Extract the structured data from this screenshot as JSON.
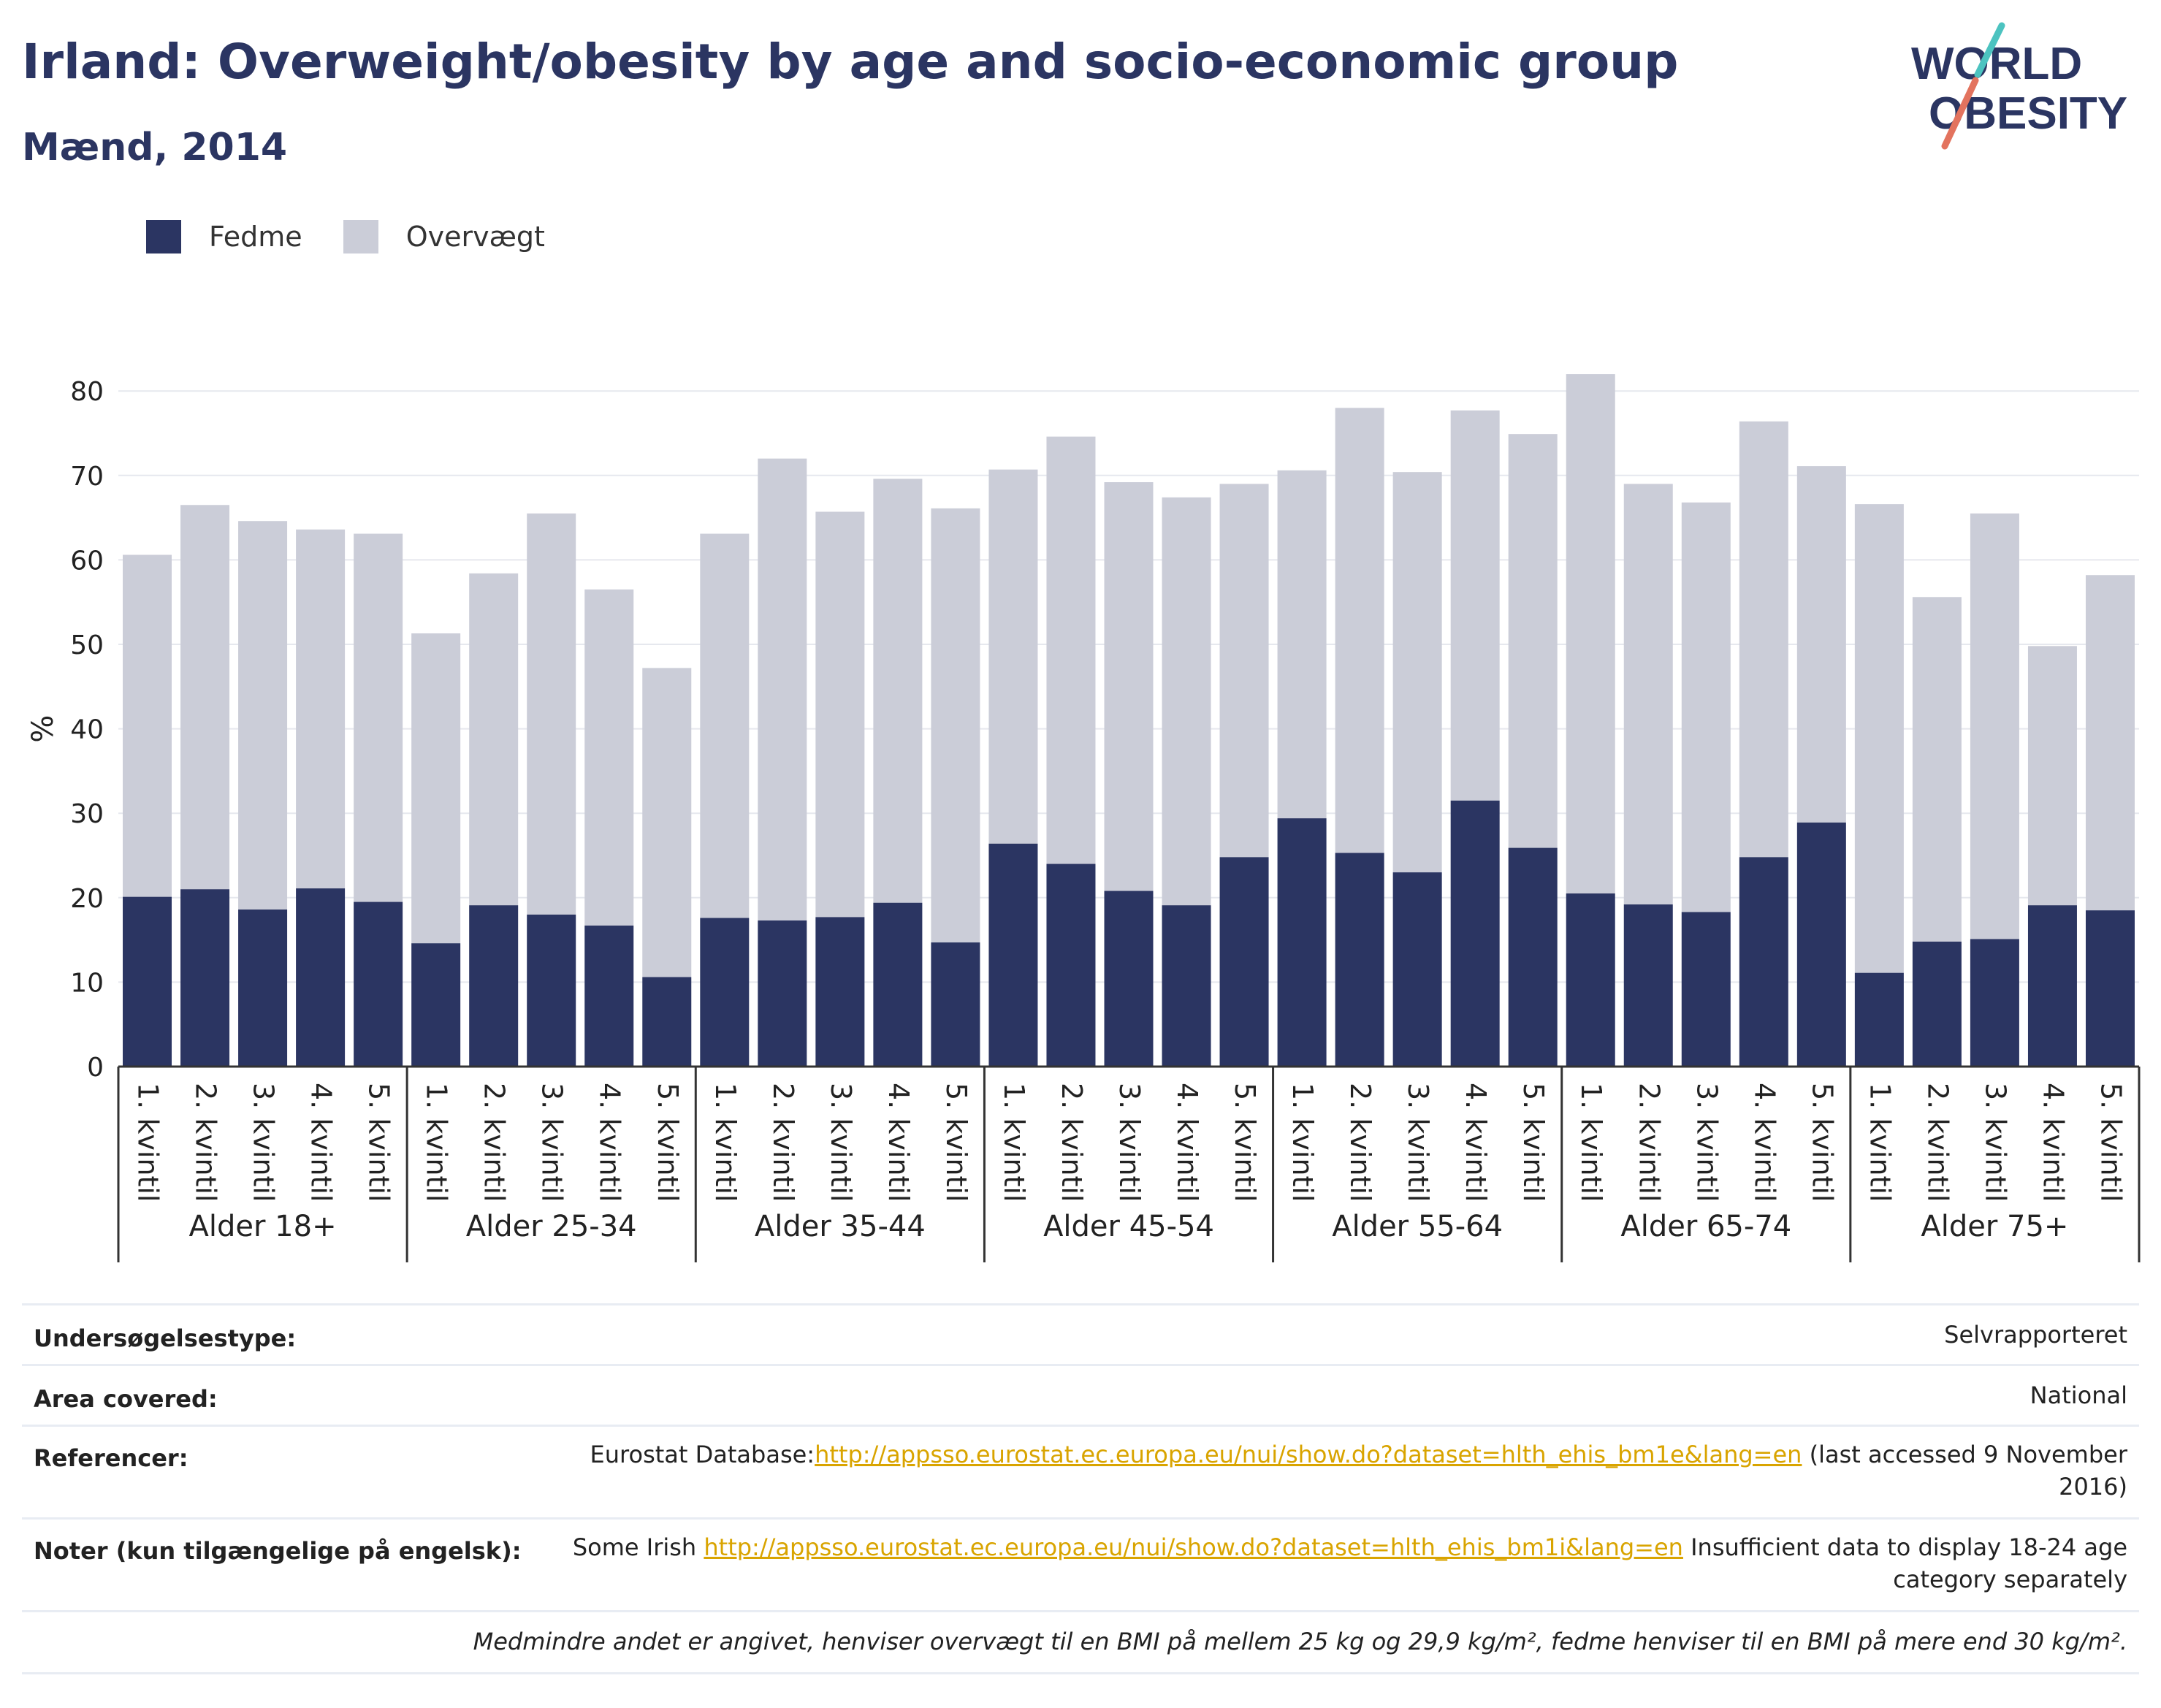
{
  "title": "Irland: Overweight/obesity by age and socio-economic group",
  "subtitle": "Mænd, 2014",
  "logo": {
    "line1": "WORLD",
    "line2": "OBESITY"
  },
  "colors": {
    "fedme": "#2b3562",
    "overvaegt": "#cbcdd8",
    "title": "#2b3562",
    "link": "#d9a400",
    "logo_teal": "#4cc3c0",
    "logo_coral": "#e3735e"
  },
  "chart_data": {
    "type": "bar",
    "stacked": true,
    "ylabel": "%",
    "ylim": [
      0,
      85
    ],
    "yticks": [
      0,
      10,
      20,
      30,
      40,
      50,
      60,
      70,
      80
    ],
    "grid": true,
    "legend": {
      "position": "top-left",
      "entries": [
        "Fedme",
        "Overvægt"
      ]
    },
    "groups": [
      {
        "label": "Alder 18+",
        "categories": [
          "1. kvintil",
          "2. kvintil",
          "3. kvintil",
          "4. kvintil",
          "5. kvintil"
        ]
      },
      {
        "label": "Alder 25-34",
        "categories": [
          "1. kvintil",
          "2. kvintil",
          "3. kvintil",
          "4. kvintil",
          "5. kvintil"
        ]
      },
      {
        "label": "Alder 35-44",
        "categories": [
          "1. kvintil",
          "2. kvintil",
          "3. kvintil",
          "4. kvintil",
          "5. kvintil"
        ]
      },
      {
        "label": "Alder 45-54",
        "categories": [
          "1. kvintil",
          "2. kvintil",
          "3. kvintil",
          "4. kvintil",
          "5. kvintil"
        ]
      },
      {
        "label": "Alder 55-64",
        "categories": [
          "1. kvintil",
          "2. kvintil",
          "3. kvintil",
          "4. kvintil",
          "5. kvintil"
        ]
      },
      {
        "label": "Alder 65-74",
        "categories": [
          "1. kvintil",
          "2. kvintil",
          "3. kvintil",
          "4. kvintil",
          "5. kvintil"
        ]
      },
      {
        "label": "Alder 75+",
        "categories": [
          "1. kvintil",
          "2. kvintil",
          "3. kvintil",
          "4. kvintil",
          "5. kvintil"
        ]
      }
    ],
    "series": [
      {
        "name": "Fedme",
        "values": [
          20.1,
          21.0,
          18.6,
          21.1,
          19.5,
          14.6,
          19.1,
          18.0,
          16.7,
          10.6,
          17.6,
          17.3,
          17.7,
          19.4,
          14.7,
          26.4,
          24.0,
          20.8,
          19.1,
          24.8,
          29.4,
          25.3,
          23.0,
          31.5,
          25.9,
          20.5,
          19.2,
          18.3,
          24.8,
          28.9,
          11.1,
          14.8,
          15.1,
          19.1,
          18.5
        ]
      },
      {
        "name": "Overvægt",
        "values": [
          40.5,
          45.5,
          46.0,
          42.5,
          43.6,
          36.7,
          39.3,
          47.5,
          39.8,
          36.6,
          45.5,
          54.7,
          48.0,
          50.2,
          51.4,
          44.3,
          50.6,
          48.4,
          48.3,
          44.2,
          41.2,
          52.7,
          47.4,
          46.2,
          49.0,
          61.5,
          49.8,
          48.5,
          51.6,
          42.2,
          55.5,
          40.8,
          50.4,
          30.7,
          39.7
        ]
      }
    ]
  },
  "info": {
    "rows": [
      {
        "label": "Undersøgelsestype:",
        "value": "Selvrapporteret"
      },
      {
        "label": "Area covered:",
        "value": "National"
      },
      {
        "label": "Referencer:",
        "prefix": "Eurostat Database:",
        "link": "http://appsso.eurostat.ec.europa.eu/nui/show.do?dataset=hlth_ehis_bm1e&lang=en",
        "suffix_line1": " (last accessed 9 November",
        "suffix_line2": "2016)"
      },
      {
        "label": "Noter (kun tilgængelige på engelsk):",
        "prefix": "Some Irish ",
        "link": "http://appsso.eurostat.ec.europa.eu/nui/show.do?dataset=hlth_ehis_bm1i&lang=en",
        "suffix_line1": " Insufficient data to display 18-24 age",
        "suffix_line2": "category separately"
      }
    ],
    "footnote": "Medmindre andet er angivet, henviser overvægt til en BMI på mellem 25 kg og 29,9 kg/m², fedme henviser til en BMI på mere end 30 kg/m²."
  }
}
